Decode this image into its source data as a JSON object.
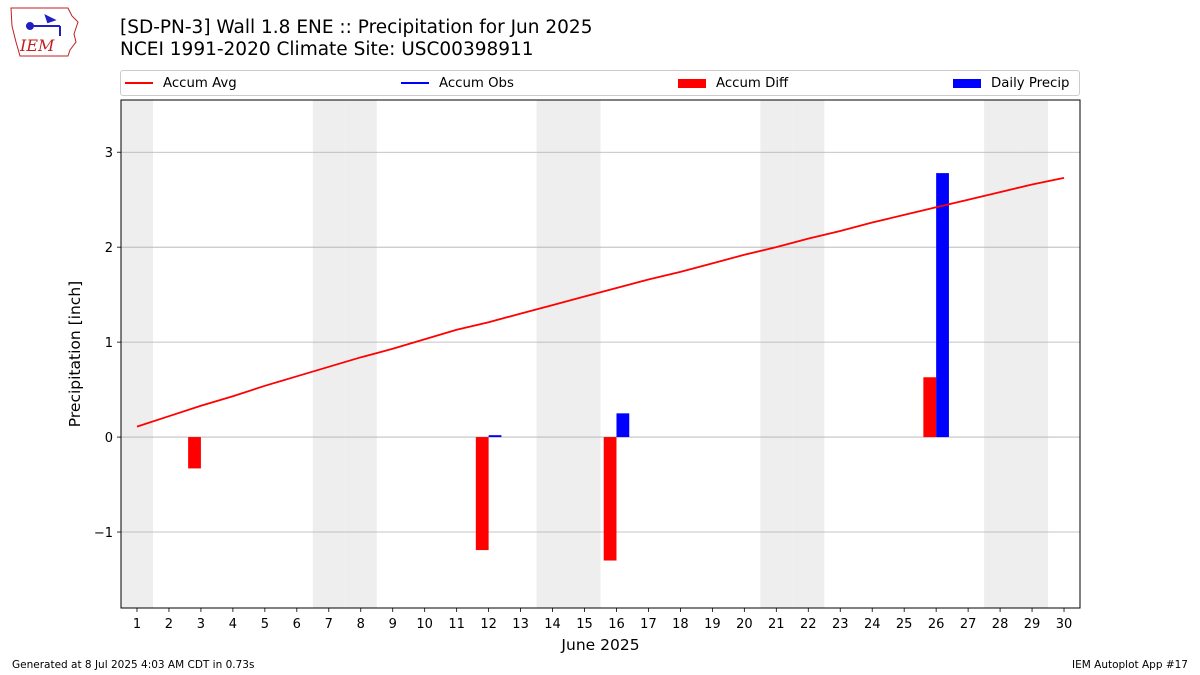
{
  "header": {
    "title_line1": "[SD-PN-3] Wall 1.8 ENE :: Precipitation for Jun 2025",
    "title_line2": "NCEI 1991-2020 Climate Site: USC00398911"
  },
  "logo": {
    "text": "IEM",
    "icon": "iem-iowa-logo"
  },
  "legend": {
    "items": [
      {
        "label": "Accum Avg",
        "kind": "line",
        "color": "#ff0000"
      },
      {
        "label": "Accum Obs",
        "kind": "line",
        "color": "#0000ff"
      },
      {
        "label": "Accum Diff",
        "kind": "patch",
        "color": "#ff0000"
      },
      {
        "label": "Daily Precip",
        "kind": "patch",
        "color": "#0000ff"
      }
    ]
  },
  "footer": {
    "left": "Generated at 8 Jul 2025 4:03 AM CDT in 0.73s",
    "right": "IEM Autoplot App #17"
  },
  "colors": {
    "avg": "#ff0000",
    "obs": "#0000ff",
    "diff": "#ff0000",
    "daily": "#0000ff",
    "weekend_shade": "#eeeeee",
    "grid": "#b0b0b0"
  },
  "chart_data": {
    "type": "bar",
    "xlabel": "June 2025",
    "ylabel": "Precipitation [inch]",
    "xlim": [
      0.5,
      30.5
    ],
    "ylim": [
      -1.8,
      3.55
    ],
    "grid": true,
    "legend_position": "top",
    "x_ticks": [
      1,
      2,
      3,
      4,
      5,
      6,
      7,
      8,
      9,
      10,
      11,
      12,
      13,
      14,
      15,
      16,
      17,
      18,
      19,
      20,
      21,
      22,
      23,
      24,
      25,
      26,
      27,
      28,
      29,
      30
    ],
    "y_ticks": [
      {
        "value": -1,
        "label": "−1"
      },
      {
        "value": 0,
        "label": "0"
      },
      {
        "value": 1,
        "label": "1"
      },
      {
        "value": 2,
        "label": "2"
      },
      {
        "value": 3,
        "label": "3"
      }
    ],
    "weekend_days": [
      1,
      7,
      8,
      14,
      15,
      21,
      22,
      28,
      29
    ],
    "series": [
      {
        "name": "Accum Avg",
        "type": "line",
        "x": [
          1,
          2,
          3,
          4,
          5,
          6,
          7,
          8,
          9,
          10,
          11,
          12,
          13,
          14,
          15,
          16,
          17,
          18,
          19,
          20,
          21,
          22,
          23,
          24,
          25,
          26,
          27,
          28,
          29,
          30
        ],
        "values": [
          0.11,
          0.22,
          0.33,
          0.43,
          0.54,
          0.64,
          0.74,
          0.84,
          0.93,
          1.03,
          1.13,
          1.21,
          1.3,
          1.39,
          1.48,
          1.57,
          1.66,
          1.74,
          1.83,
          1.92,
          2.0,
          2.09,
          2.17,
          2.26,
          2.34,
          2.42,
          2.5,
          2.58,
          2.66,
          2.73
        ]
      },
      {
        "name": "Accum Diff",
        "type": "bar",
        "x": [
          3,
          12,
          16,
          26
        ],
        "values": [
          -0.33,
          -1.19,
          -1.3,
          0.63
        ]
      },
      {
        "name": "Daily Precip",
        "type": "bar",
        "x": [
          12,
          16,
          26
        ],
        "values": [
          0.02,
          0.25,
          2.78
        ]
      }
    ]
  }
}
